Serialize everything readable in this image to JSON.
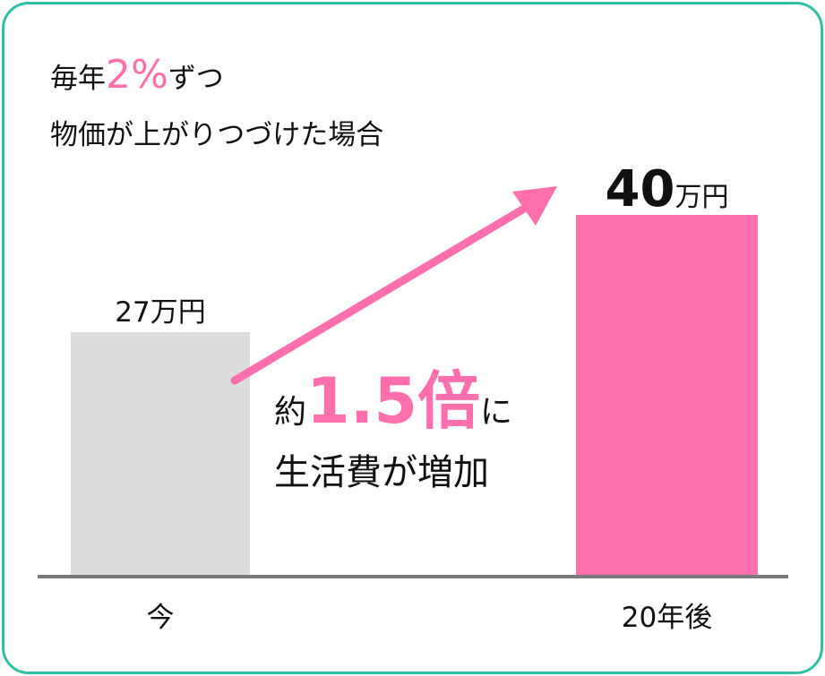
{
  "heading": {
    "line1_prefix": "毎年",
    "line1_rate": "2%",
    "line1_suffix": "ずつ",
    "line2": "物価が上がりつづけた場合"
  },
  "annotation": {
    "prefix": "約",
    "multiplier": "1.5倍",
    "suffix": "に",
    "line2": "生活費が増加"
  },
  "chart_data": {
    "type": "bar",
    "categories": [
      "今",
      "20年後"
    ],
    "values": [
      27,
      40
    ],
    "value_labels": [
      {
        "number": "27",
        "unit": "万円"
      },
      {
        "number": "40",
        "unit": "万円"
      }
    ],
    "unit": "万円",
    "ylim": [
      0,
      40
    ],
    "colors": [
      "#dddddd",
      "#ff6fad"
    ],
    "arrow_color": "#ff6fad",
    "border_color": "#2fc0a4",
    "baseline_color": "#7a7a7a"
  }
}
